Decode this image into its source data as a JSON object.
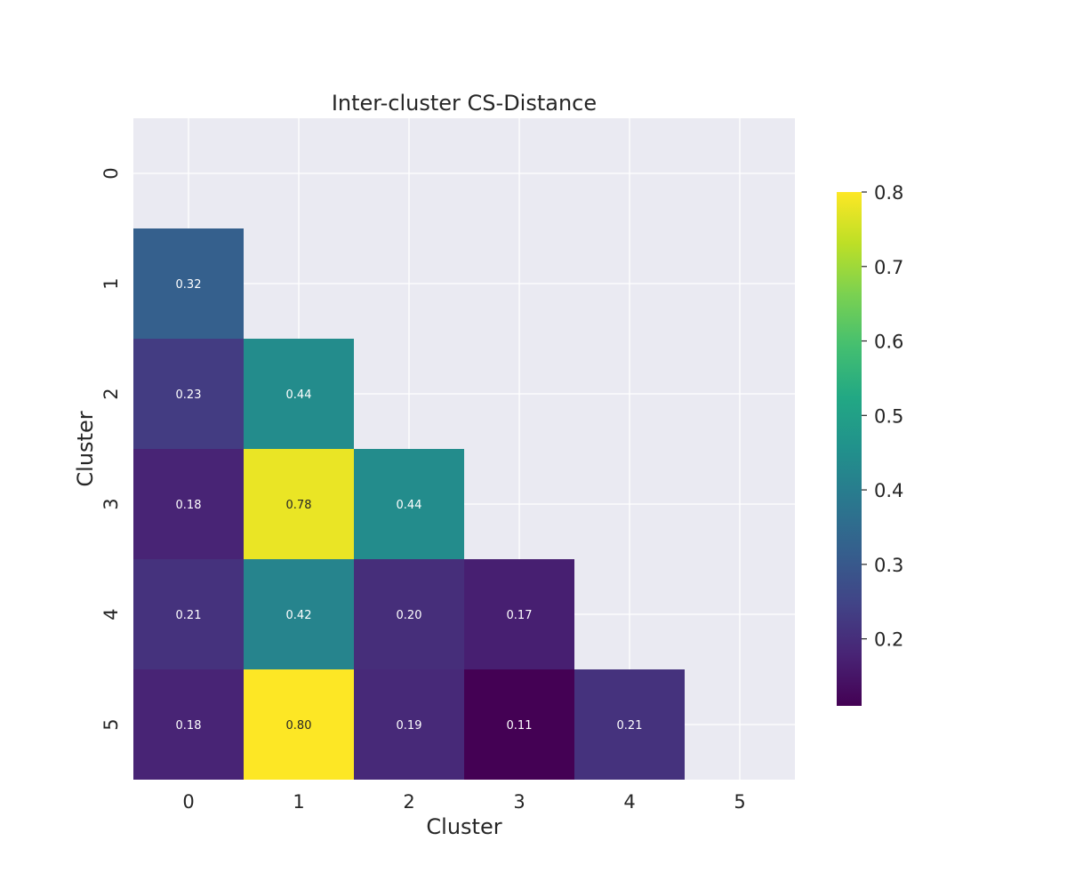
{
  "chart_data": {
    "type": "heatmap",
    "title": "Inter-cluster CS-Distance",
    "xlabel": "Cluster",
    "ylabel": "Cluster",
    "x_categories": [
      "0",
      "1",
      "2",
      "3",
      "4",
      "5"
    ],
    "y_categories": [
      "0",
      "1",
      "2",
      "3",
      "4",
      "5"
    ],
    "cells": [
      {
        "row": 1,
        "col": 0,
        "value": 0.32,
        "label": "0.32"
      },
      {
        "row": 2,
        "col": 0,
        "value": 0.23,
        "label": "0.23"
      },
      {
        "row": 2,
        "col": 1,
        "value": 0.44,
        "label": "0.44"
      },
      {
        "row": 3,
        "col": 0,
        "value": 0.18,
        "label": "0.18"
      },
      {
        "row": 3,
        "col": 1,
        "value": 0.78,
        "label": "0.78"
      },
      {
        "row": 3,
        "col": 2,
        "value": 0.44,
        "label": "0.44"
      },
      {
        "row": 4,
        "col": 0,
        "value": 0.21,
        "label": "0.21"
      },
      {
        "row": 4,
        "col": 1,
        "value": 0.42,
        "label": "0.42"
      },
      {
        "row": 4,
        "col": 2,
        "value": 0.2,
        "label": "0.20"
      },
      {
        "row": 4,
        "col": 3,
        "value": 0.17,
        "label": "0.17"
      },
      {
        "row": 5,
        "col": 0,
        "value": 0.18,
        "label": "0.18"
      },
      {
        "row": 5,
        "col": 1,
        "value": 0.8,
        "label": "0.80"
      },
      {
        "row": 5,
        "col": 2,
        "value": 0.19,
        "label": "0.19"
      },
      {
        "row": 5,
        "col": 3,
        "value": 0.11,
        "label": "0.11"
      },
      {
        "row": 5,
        "col": 4,
        "value": 0.21,
        "label": "0.21"
      }
    ],
    "mask": "upper triangle including diagonal",
    "colormap": "viridis",
    "colorbar": {
      "range": [
        0.11,
        0.8
      ],
      "ticks": [
        {
          "value": 0.2,
          "label": "0.2"
        },
        {
          "value": 0.3,
          "label": "0.3"
        },
        {
          "value": 0.4,
          "label": "0.4"
        },
        {
          "value": 0.5,
          "label": "0.5"
        },
        {
          "value": 0.6,
          "label": "0.6"
        },
        {
          "value": 0.7,
          "label": "0.7"
        },
        {
          "value": 0.8,
          "label": "0.8"
        }
      ]
    },
    "grid": true,
    "colors": {
      "plot_background": "#eaeaf2",
      "grid": "#ffffff",
      "text": "#262626",
      "cell_text_dark": "#262626",
      "cell_text_light": "#ffffff"
    }
  }
}
